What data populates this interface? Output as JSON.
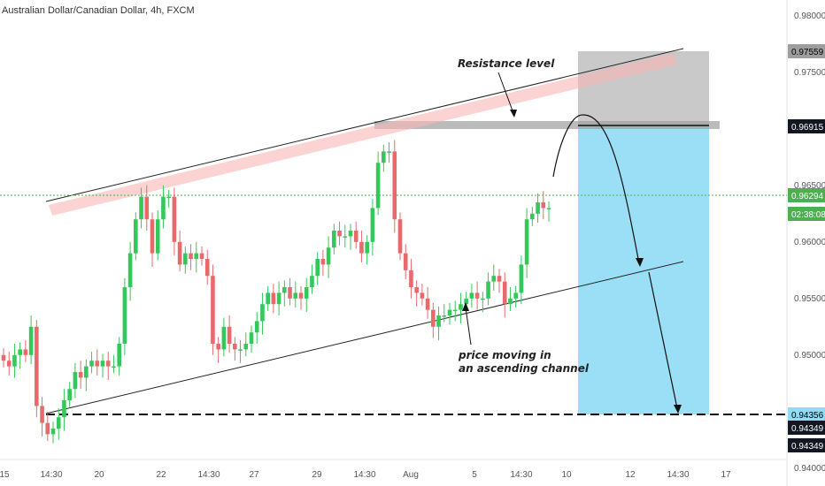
{
  "chart_data": {
    "type": "candlestick",
    "title": "Australian Dollar/Canadian Dollar, 4h, FXCM",
    "y_axis": {
      "range": [
        0.941,
        0.981
      ],
      "ticks": [
        "0.98000",
        "0.97500",
        "0.97000",
        "0.96500",
        "0.96000",
        "0.95500",
        "0.95000",
        "0.94500",
        "0.94000"
      ]
    },
    "x_axis": {
      "ticks": [
        "15",
        "14:30",
        "20",
        "22",
        "14:30",
        "27",
        "29",
        "14:30",
        "Aug",
        "5",
        "14:30",
        "10",
        "12",
        "14:30",
        "17"
      ]
    },
    "price_tags": [
      {
        "label": "0.97559",
        "style": "gray"
      },
      {
        "label": "0.96915",
        "style": "dark"
      },
      {
        "label": "0.96294",
        "style": "green"
      },
      {
        "label": "02:38:08",
        "style": "green"
      },
      {
        "label": "0.94356",
        "style": "cyan"
      },
      {
        "label": "0.94349",
        "style": "dark"
      },
      {
        "label": "0.94349",
        "style": "dark"
      }
    ],
    "candles_close": [
      0.9495,
      0.949,
      0.95,
      0.9505,
      0.95,
      0.9525,
      0.9455,
      0.944,
      0.943,
      0.9435,
      0.9445,
      0.946,
      0.947,
      0.9485,
      0.948,
      0.949,
      0.9495,
      0.949,
      0.9495,
      0.949,
      0.949,
      0.951,
      0.956,
      0.959,
      0.962,
      0.964,
      0.962,
      0.959,
      0.962,
      0.964,
      0.964,
      0.96,
      0.958,
      0.959,
      0.9585,
      0.959,
      0.9585,
      0.957,
      0.951,
      0.9505,
      0.9525,
      0.951,
      0.9505,
      0.9505,
      0.951,
      0.952,
      0.953,
      0.9545,
      0.9555,
      0.9545,
      0.9555,
      0.956,
      0.955,
      0.9555,
      0.955,
      0.956,
      0.957,
      0.9585,
      0.958,
      0.9595,
      0.961,
      0.9605,
      0.9605,
      0.961,
      0.96,
      0.959,
      0.96,
      0.963,
      0.967,
      0.968,
      0.968,
      0.962,
      0.959,
      0.9575,
      0.956,
      0.9555,
      0.955,
      0.954,
      0.9525,
      0.9535,
      0.9535,
      0.954,
      0.954,
      0.9545,
      0.955,
      0.9555,
      0.955,
      0.955,
      0.9565,
      0.957,
      0.9565,
      0.9545,
      0.955,
      0.9555,
      0.958,
      0.962,
      0.9625,
      0.9635,
      0.963,
      0.963
    ],
    "annotations": [
      "Resistance level",
      "price moving in",
      "an ascending channel"
    ],
    "colors": {
      "up": "#26a69a",
      "down": "#ef5350",
      "bull_fill": "#34c759",
      "bear_fill": "#e8696b",
      "target_box": "#8fdcf5",
      "stop_box": "#b0b0b0",
      "last_price": "#4caf50"
    }
  }
}
